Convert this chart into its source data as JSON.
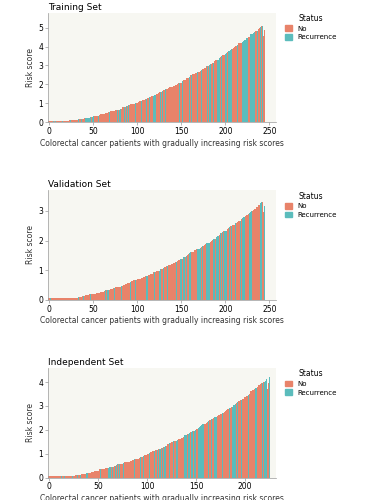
{
  "panels": [
    {
      "title": "Training Set",
      "n_patients": 246,
      "max_score": 5.2,
      "yticks": [
        0,
        1,
        2,
        3,
        4,
        5
      ],
      "ylim": [
        0,
        5.8
      ],
      "xticks": [
        0,
        50,
        100,
        150,
        200,
        250
      ],
      "xlim": [
        -1,
        258
      ]
    },
    {
      "title": "Validation Set",
      "n_patients": 246,
      "max_score": 3.35,
      "yticks": [
        0,
        1,
        2,
        3
      ],
      "ylim": [
        0,
        3.7
      ],
      "xticks": [
        0,
        50,
        100,
        150,
        200,
        250
      ],
      "xlim": [
        -1,
        258
      ]
    },
    {
      "title": "Independent Set",
      "n_patients": 226,
      "max_score": 4.2,
      "yticks": [
        0,
        1,
        2,
        3,
        4
      ],
      "ylim": [
        0,
        4.6
      ],
      "xticks": [
        0,
        50,
        100,
        150,
        200
      ],
      "xlim": [
        -1,
        232
      ]
    }
  ],
  "color_no": "#E8836A",
  "color_recurrence": "#5BBCBC",
  "xlabel": "Colorectal cancer patients with gradually increasing risk scores",
  "ylabel": "Risk score",
  "legend_title": "Status",
  "legend_no": "No",
  "legend_recurrence": "Recurrence",
  "background_color": "#F7F7F2",
  "fig_bg": "#FFFFFF",
  "bar_width": 1.0
}
